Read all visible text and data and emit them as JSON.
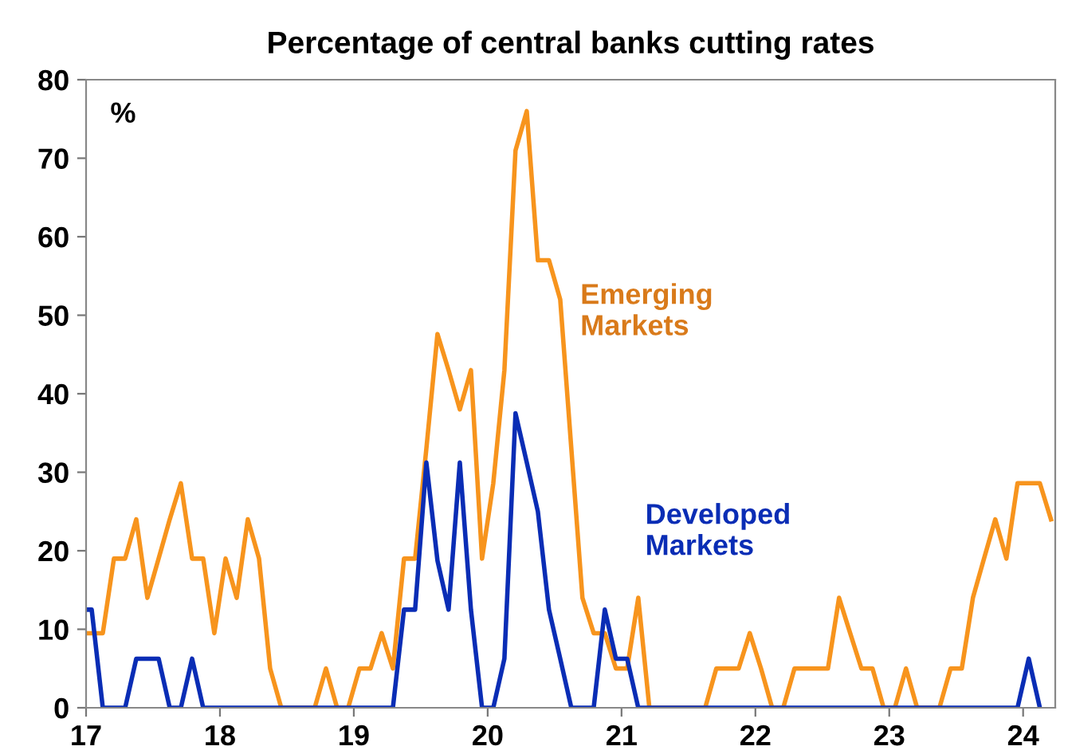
{
  "chart_data": {
    "type": "line",
    "title": "Percentage of central banks cutting rates",
    "ylabel": "%",
    "x": [
      17.0,
      17.042,
      17.125,
      17.208,
      17.292,
      17.375,
      17.458,
      17.542,
      17.625,
      17.708,
      17.792,
      17.875,
      17.958,
      18.042,
      18.125,
      18.208,
      18.292,
      18.375,
      18.458,
      18.542,
      18.625,
      18.708,
      18.792,
      18.875,
      18.958,
      19.042,
      19.125,
      19.208,
      19.292,
      19.375,
      19.458,
      19.542,
      19.625,
      19.708,
      19.792,
      19.875,
      19.958,
      20.042,
      20.125,
      20.208,
      20.292,
      20.375,
      20.458,
      20.542,
      20.625,
      20.708,
      20.792,
      20.875,
      20.958,
      21.042,
      21.125,
      21.208,
      21.292,
      21.375,
      21.458,
      21.542,
      21.625,
      21.708,
      21.792,
      21.875,
      21.958,
      22.042,
      22.125,
      22.208,
      22.292,
      22.375,
      22.458,
      22.542,
      22.625,
      22.708,
      22.792,
      22.875,
      22.958,
      23.042,
      23.125,
      23.208,
      23.292,
      23.375,
      23.458,
      23.542,
      23.625,
      23.708,
      23.792,
      23.875,
      23.958,
      24.042,
      24.125,
      24.208
    ],
    "series": [
      {
        "name": "Emerging Markets",
        "color": "#f7941d",
        "values": [
          9.5,
          9.5,
          9.5,
          19,
          19,
          24,
          14,
          19,
          24,
          28.6,
          19,
          19,
          9.5,
          19,
          14,
          24,
          19,
          5,
          0,
          0,
          0,
          0,
          5,
          0,
          0,
          5,
          5,
          9.5,
          5,
          19,
          19,
          33,
          47.6,
          43,
          38,
          43,
          19,
          28.6,
          43,
          71,
          76,
          57,
          57,
          52,
          33,
          14,
          9.5,
          9.5,
          5,
          5,
          14,
          0,
          0,
          0,
          0,
          0,
          0,
          5,
          5,
          5,
          9.5,
          5,
          0,
          0,
          5,
          5,
          5,
          5,
          14,
          9.5,
          5,
          5,
          0,
          0,
          5,
          0,
          0,
          0,
          5,
          5,
          14,
          19,
          24,
          19,
          28.6,
          28.6,
          28.6,
          24
        ]
      },
      {
        "name": "Developed Markets",
        "color": "#0a2db5",
        "values": [
          12.5,
          12.5,
          0,
          0,
          0,
          6.25,
          6.25,
          6.25,
          0,
          0,
          6.25,
          0,
          0,
          0,
          0,
          0,
          0,
          0,
          0,
          0,
          0,
          0,
          0,
          0,
          0,
          0,
          0,
          0,
          0,
          12.5,
          12.5,
          31.25,
          18.75,
          12.5,
          31.25,
          12.5,
          0,
          0,
          6.25,
          37.5,
          31.25,
          25,
          12.5,
          6.25,
          0,
          0,
          0,
          12.5,
          6.25,
          6.25,
          0,
          0,
          0,
          0,
          0,
          0,
          0,
          0,
          0,
          0,
          0,
          0,
          0,
          0,
          0,
          0,
          0,
          0,
          0,
          0,
          0,
          0,
          0,
          0,
          0,
          0,
          0,
          0,
          0,
          0,
          0,
          0,
          0,
          0,
          0,
          6.25,
          0,
          null
        ]
      }
    ],
    "xlim": [
      17.0,
      24.24
    ],
    "xticks": [
      17,
      18,
      19,
      20,
      21,
      22,
      23,
      24
    ],
    "ylim": [
      0,
      80
    ],
    "yticks": [
      0,
      10,
      20,
      30,
      40,
      50,
      60,
      70,
      80
    ],
    "grid": false,
    "legend": false
  }
}
